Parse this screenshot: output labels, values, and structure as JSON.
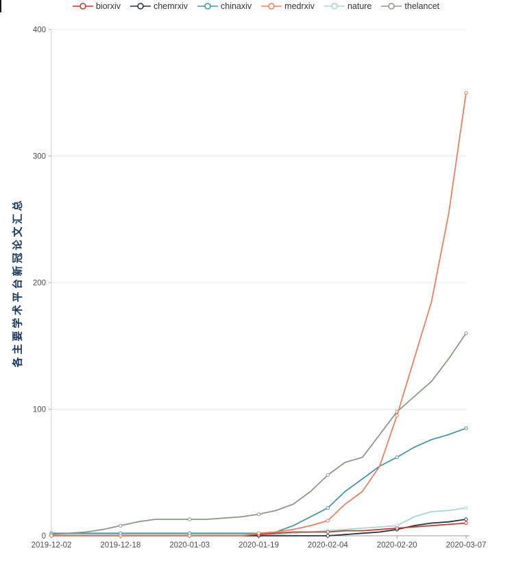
{
  "chart_data": {
    "type": "line",
    "title": "",
    "ylabel": "各主要学术平台新冠论文汇总",
    "xlabel": "",
    "ylim": [
      0,
      400
    ],
    "yticks": [
      0,
      100,
      200,
      300,
      400
    ],
    "xtick_labels": [
      "2019-12-02",
      "2019-12-18",
      "2020-01-03",
      "2020-01-19",
      "2020-02-04",
      "2020-02-20",
      "2020-03-07"
    ],
    "grid": "horizontal",
    "legend_position": "top",
    "marker": "open-circle",
    "x": [
      "2019-12-02",
      "2019-12-06",
      "2019-12-10",
      "2019-12-14",
      "2019-12-18",
      "2019-12-22",
      "2019-12-26",
      "2019-12-30",
      "2020-01-03",
      "2020-01-07",
      "2020-01-11",
      "2020-01-15",
      "2020-01-19",
      "2020-01-23",
      "2020-01-27",
      "2020-01-31",
      "2020-02-04",
      "2020-02-08",
      "2020-02-12",
      "2020-02-16",
      "2020-02-20",
      "2020-02-24",
      "2020-02-28",
      "2020-03-03",
      "2020-03-07"
    ],
    "series": [
      {
        "name": "biorxiv",
        "color": "#c9392f",
        "values": [
          0,
          0,
          0,
          0,
          0,
          0,
          0,
          0,
          0,
          0,
          0,
          0,
          1,
          2,
          3,
          3,
          3,
          4,
          4,
          5,
          6,
          7,
          8,
          9,
          10
        ]
      },
      {
        "name": "chemrxiv",
        "color": "#26323e",
        "values": [
          0,
          0,
          0,
          0,
          0,
          0,
          0,
          0,
          0,
          0,
          0,
          0,
          0,
          0,
          0,
          0,
          0,
          1,
          2,
          3,
          5,
          8,
          10,
          11,
          13
        ]
      },
      {
        "name": "chinaxiv",
        "color": "#4796a1",
        "values": [
          2,
          2,
          2,
          2,
          2,
          2,
          2,
          2,
          2,
          2,
          2,
          2,
          2,
          3,
          8,
          15,
          22,
          35,
          45,
          55,
          62,
          70,
          76,
          80,
          85
        ]
      },
      {
        "name": "medrxiv",
        "color": "#e5815f",
        "values": [
          0,
          0,
          0,
          0,
          0,
          0,
          0,
          0,
          0,
          0,
          0,
          0,
          2,
          3,
          5,
          8,
          12,
          25,
          35,
          55,
          95,
          140,
          185,
          255,
          350
        ]
      },
      {
        "name": "nature",
        "color": "#a5d7d2",
        "values": [
          1,
          1,
          1,
          1,
          1,
          1,
          1,
          1,
          1,
          1,
          1,
          1,
          1,
          1,
          2,
          3,
          4,
          5,
          6,
          7,
          8,
          15,
          19,
          20,
          22
        ]
      },
      {
        "name": "thelancet",
        "color": "#8a9a87",
        "values": [
          1,
          2,
          3,
          5,
          8,
          11,
          13,
          13,
          13,
          13,
          14,
          15,
          17,
          20,
          25,
          35,
          48,
          58,
          62,
          80,
          98,
          110,
          122,
          140,
          160
        ]
      }
    ]
  },
  "axis": {
    "ylabel_color": "#16365c",
    "tick_color": "#4d4d4d"
  }
}
